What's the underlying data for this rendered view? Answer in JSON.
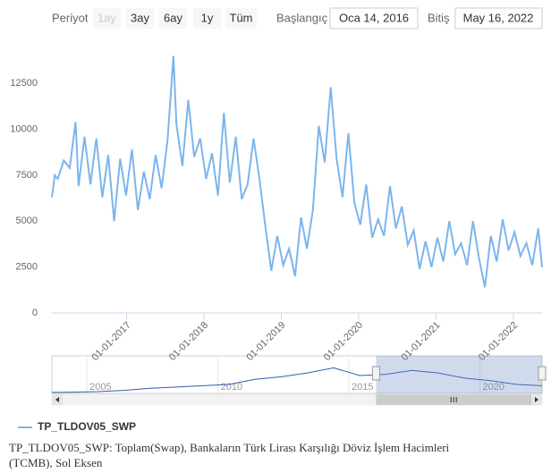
{
  "range_selector": {
    "label": "Periyot",
    "buttons": [
      "1ay",
      "3ay",
      "6ay",
      "1y",
      "Tüm"
    ],
    "start_label": "Başlangıç",
    "start": "Oca 14, 2016",
    "end_label": "Bitiş",
    "end": "May 16, 2022"
  },
  "chart_data": [
    {
      "type": "line",
      "x": [
        "2016-01-14",
        "2016-01-28",
        "2016-02-11",
        "2016-03-10",
        "2016-04-07",
        "2016-05-05",
        "2016-05-19",
        "2016-06-16",
        "2016-07-14",
        "2016-08-11",
        "2016-09-08",
        "2016-10-06",
        "2016-11-03",
        "2016-12-01",
        "2016-12-29",
        "2017-01-26",
        "2017-02-23",
        "2017-03-23",
        "2017-04-20",
        "2017-05-18",
        "2017-06-15",
        "2017-07-13",
        "2017-08-10",
        "2017-08-24",
        "2017-09-21",
        "2017-10-19",
        "2017-11-16",
        "2017-12-14",
        "2018-01-11",
        "2018-02-08",
        "2018-03-08",
        "2018-04-05",
        "2018-05-03",
        "2018-05-31",
        "2018-06-28",
        "2018-07-26",
        "2018-08-23",
        "2018-09-20",
        "2018-10-18",
        "2018-11-15",
        "2018-12-13",
        "2019-01-10",
        "2019-02-07",
        "2019-03-07",
        "2019-04-04",
        "2019-05-02",
        "2019-05-30",
        "2019-06-27",
        "2019-07-25",
        "2019-08-22",
        "2019-09-19",
        "2019-10-17",
        "2019-11-14",
        "2019-12-12",
        "2020-01-09",
        "2020-02-06",
        "2020-03-05",
        "2020-04-02",
        "2020-04-30",
        "2020-05-28",
        "2020-06-25",
        "2020-07-23",
        "2020-08-20",
        "2020-09-17",
        "2020-10-15",
        "2020-11-12",
        "2020-12-10",
        "2021-01-07",
        "2021-02-04",
        "2021-03-04",
        "2021-04-01",
        "2021-04-29",
        "2021-05-27",
        "2021-06-24",
        "2021-07-22",
        "2021-08-19",
        "2021-09-16",
        "2021-10-14",
        "2021-11-11",
        "2021-12-09",
        "2022-01-06",
        "2022-02-03",
        "2022-03-03",
        "2022-03-31",
        "2022-04-28",
        "2022-05-16"
      ],
      "series": [
        {
          "name": "TP_TLDOV05_SWP",
          "color": "#7cb5ec",
          "values": [
            6300,
            7500,
            7300,
            8300,
            7900,
            10400,
            6900,
            9600,
            7000,
            9500,
            6300,
            8600,
            5000,
            8400,
            6400,
            8900,
            5600,
            7700,
            6200,
            8600,
            6800,
            9400,
            14000,
            10300,
            8000,
            11600,
            8500,
            9500,
            7300,
            8700,
            6400,
            10900,
            7100,
            9600,
            6200,
            7000,
            9500,
            7300,
            4700,
            2300,
            4200,
            2600,
            3500,
            2000,
            5200,
            3500,
            5600,
            10200,
            8200,
            12300,
            8400,
            6300,
            9800,
            6000,
            4800,
            7000,
            4100,
            5100,
            4200,
            6900,
            4600,
            5800,
            3700,
            4500,
            2400,
            3900,
            2500,
            4100,
            2800,
            5000,
            3200,
            3800,
            2600,
            5000,
            3000,
            1400,
            4200,
            2800,
            5100,
            3400,
            4400,
            3100,
            3800,
            2600,
            4600,
            2500
          ]
        }
      ],
      "xlim": [
        "2016-01-14",
        "2022-05-16"
      ],
      "ylim": [
        0,
        15000
      ],
      "yticks": [
        0,
        2500,
        5000,
        7500,
        10000,
        12500
      ],
      "xticks": [
        {
          "value": "2017-01-01",
          "label": "01-01-2017"
        },
        {
          "value": "2018-01-01",
          "label": "01-01-2018"
        },
        {
          "value": "2019-01-01",
          "label": "01-01-2019"
        },
        {
          "value": "2020-01-01",
          "label": "01-01-2020"
        },
        {
          "value": "2021-01-01",
          "label": "01-01-2021"
        },
        {
          "value": "2022-01-01",
          "label": "01-01-2022"
        }
      ],
      "legend": "bottom-left"
    },
    {
      "type": "line",
      "x": [
        "2003-09-01",
        "2004-06-01",
        "2005-06-01",
        "2006-06-01",
        "2007-06-01",
        "2008-06-01",
        "2009-06-01",
        "2010-06-01",
        "2011-06-01",
        "2012-06-01",
        "2013-06-01",
        "2014-06-01",
        "2014-12-01",
        "2015-06-01",
        "2016-06-01",
        "2017-06-01",
        "2018-06-01",
        "2019-06-01",
        "2020-06-01",
        "2021-06-01",
        "2022-05-16"
      ],
      "series": [
        {
          "color": "#335cad",
          "values": [
            400,
            500,
            700,
            1200,
            2000,
            2500,
            3000,
            3500,
            5500,
            6500,
            8000,
            10000,
            8500,
            7000,
            7500,
            9000,
            8000,
            6000,
            5000,
            3500,
            3000
          ]
        }
      ],
      "xlim": [
        "2003-09-01",
        "2022-05-16"
      ],
      "ylim": [
        0,
        14000
      ],
      "xticks": [
        {
          "value": "2005-01-01",
          "label": "2005"
        },
        {
          "value": "2010-01-01",
          "label": "2010"
        },
        {
          "value": "2015-01-01",
          "label": "2015"
        },
        {
          "value": "2020-01-01",
          "label": "2020"
        }
      ]
    }
  ],
  "footer": "TP_TLDOV05_SWP: Toplam(Swap), Bankaların Türk Lirası Karşılığı Döviz İşlem Hacimleri (TCMB), Sol Eksen"
}
